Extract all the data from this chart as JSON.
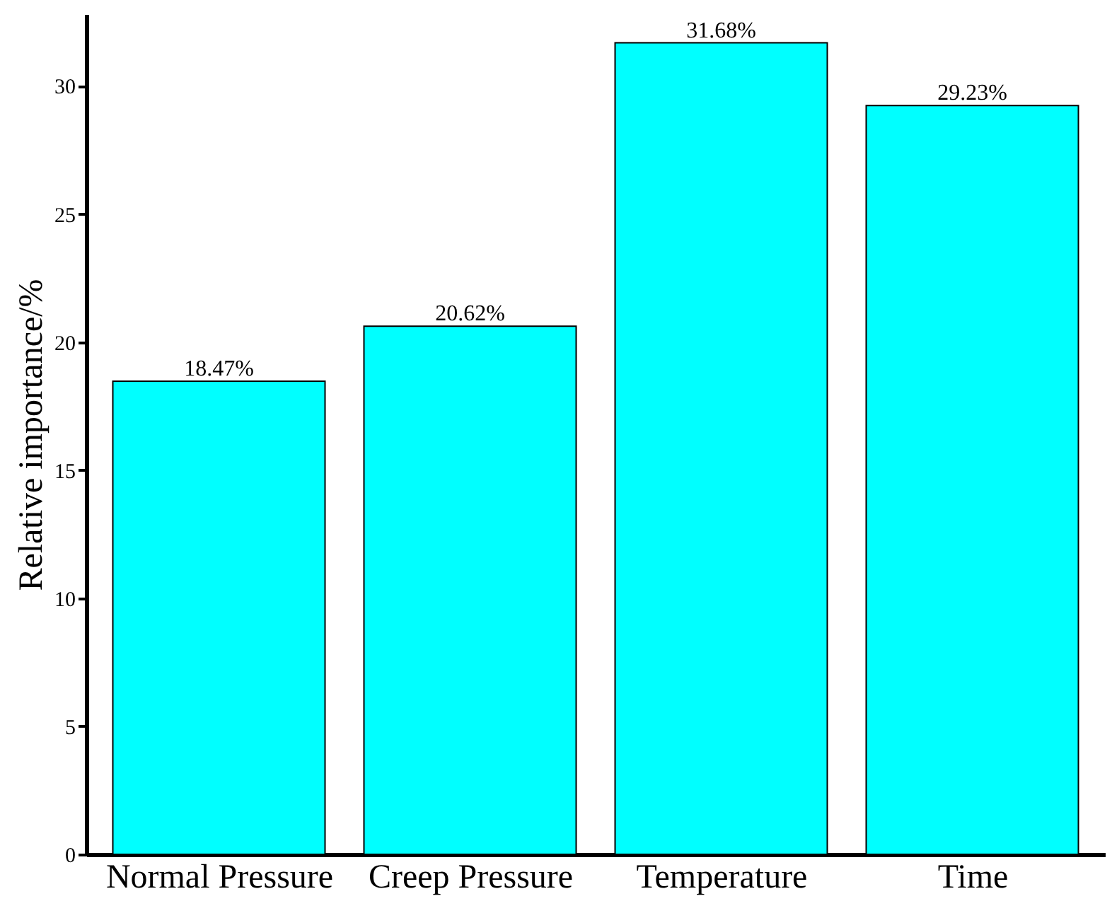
{
  "chart_data": {
    "type": "bar",
    "ylabel": "Relative importance/%",
    "categories": [
      "Normal Pressure",
      "Creep Pressure",
      "Temperature",
      "Time"
    ],
    "values": [
      18.47,
      20.62,
      31.68,
      29.23
    ],
    "value_labels": [
      "18.47%",
      "20.62%",
      "31.68%",
      "29.23%"
    ],
    "color": "#00ffff",
    "ylim": [
      0,
      32.8
    ],
    "yticks": [
      0,
      5,
      10,
      15,
      20,
      25,
      30
    ],
    "grid": false
  }
}
